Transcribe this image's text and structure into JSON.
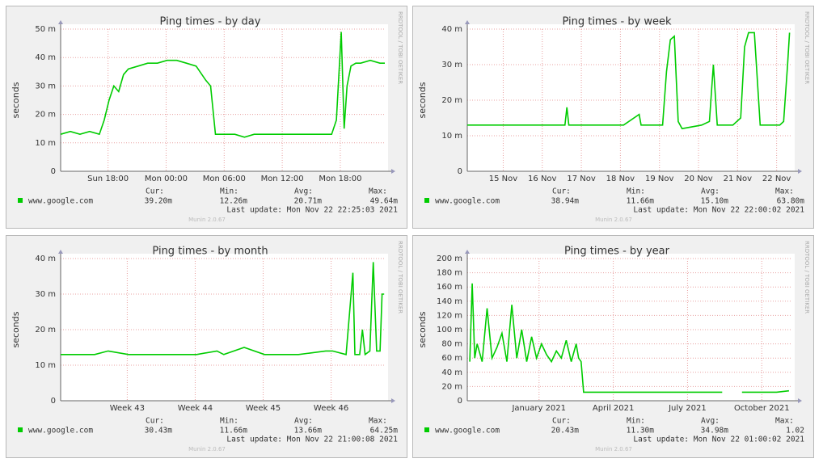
{
  "chart_data": [
    {
      "type": "line",
      "title": "Ping times - by day",
      "y_label": "seconds",
      "x": [
        0,
        1,
        2,
        3,
        4,
        4.5,
        5,
        5.5,
        6,
        6.5,
        7,
        8,
        9,
        10,
        11,
        12,
        13,
        14,
        15,
        15.5,
        16,
        16.3,
        17,
        18,
        19,
        20,
        21,
        22,
        23,
        24,
        25,
        26,
        27,
        28,
        28.5,
        29,
        29.3,
        29.6,
        30,
        30.5,
        31,
        32,
        33,
        33.5
      ],
      "series": [
        {
          "name": "www.google.com",
          "color": "#00cc00",
          "values": [
            13,
            14,
            13,
            14,
            13,
            18,
            25,
            30,
            28,
            34,
            36,
            37,
            38,
            38,
            39,
            39,
            38,
            37,
            32,
            30,
            13,
            13,
            13,
            13,
            12,
            13,
            13,
            13,
            13,
            13,
            13,
            13,
            13,
            13,
            18,
            49,
            15,
            30,
            37,
            38,
            38,
            39,
            38,
            38
          ]
        }
      ],
      "xlim": [
        0,
        33.5
      ],
      "xticks": [
        {
          "value": 4.9,
          "label": "Sun 18:00"
        },
        {
          "value": 10.9,
          "label": "Mon 00:00"
        },
        {
          "value": 16.9,
          "label": "Mon 06:00"
        },
        {
          "value": 22.9,
          "label": "Mon 12:00"
        },
        {
          "value": 28.9,
          "label": "Mon 18:00"
        }
      ],
      "ylim": [
        0,
        50
      ],
      "yticks": [
        0,
        {
          "value": 10,
          "label": "10 m"
        },
        {
          "value": 20,
          "label": "20 m"
        },
        {
          "value": 30,
          "label": "30 m"
        },
        {
          "value": 40,
          "label": "40 m"
        },
        {
          "value": 50,
          "label": "50 m"
        }
      ],
      "grid": true,
      "legend_headers": [
        "Cur:",
        "Min:",
        "Avg:",
        "Max:"
      ],
      "legend_values": [
        "39.20m",
        "12.26m",
        "20.71m",
        "49.64m"
      ],
      "last_update": "Last update: Mon Nov 22 22:25:03 2021",
      "watermark": "RRDTOOL / TOBI OETIKER",
      "footer": "Munin 2.0.67"
    },
    {
      "type": "line",
      "title": "Ping times - by week",
      "y_label": "seconds",
      "x": [
        0,
        0.5,
        1,
        1.5,
        2,
        2.5,
        2.55,
        2.6,
        3,
        3.5,
        4,
        4.4,
        4.45,
        4.6,
        5,
        5.1,
        5.2,
        5.3,
        5.4,
        5.5,
        6,
        6.2,
        6.3,
        6.4,
        6.8,
        7,
        7.1,
        7.2,
        7.35,
        7.5,
        7.6,
        8,
        8.1,
        8.2,
        8.25
      ],
      "series": [
        {
          "name": "www.google.com",
          "color": "#00cc00",
          "values": [
            13,
            13,
            13,
            13,
            13,
            13,
            18,
            13,
            13,
            13,
            13,
            16,
            13,
            13,
            13,
            28,
            37,
            38,
            14,
            12,
            13,
            14,
            30,
            13,
            13,
            15,
            35,
            39,
            39,
            13,
            13,
            13,
            14,
            30,
            39
          ]
        }
      ],
      "xlim": [
        0,
        8.3
      ],
      "xticks": [
        {
          "value": 0.92,
          "label": "15 Nov"
        },
        {
          "value": 1.92,
          "label": "16 Nov"
        },
        {
          "value": 2.92,
          "label": "17 Nov"
        },
        {
          "value": 3.92,
          "label": "18 Nov"
        },
        {
          "value": 4.92,
          "label": "19 Nov"
        },
        {
          "value": 5.92,
          "label": "20 Nov"
        },
        {
          "value": 6.92,
          "label": "21 Nov"
        },
        {
          "value": 7.92,
          "label": "22 Nov"
        }
      ],
      "ylim": [
        0,
        40
      ],
      "yticks": [
        0,
        {
          "value": 10,
          "label": "10 m"
        },
        {
          "value": 20,
          "label": "20 m"
        },
        {
          "value": 30,
          "label": "30 m"
        },
        {
          "value": 40,
          "label": "40 m"
        }
      ],
      "grid": true,
      "legend_headers": [
        "Cur:",
        "Min:",
        "Avg:",
        "Max:"
      ],
      "legend_values": [
        "38.94m",
        "11.66m",
        "15.10m",
        "63.80m"
      ],
      "last_update": "Last update: Mon Nov 22 22:00:02 2021",
      "watermark": "RRDTOOL / TOBI OETIKER",
      "footer": "Munin 2.0.67"
    },
    {
      "type": "line",
      "title": "Ping times - by month",
      "y_label": "seconds",
      "x": [
        0,
        0.5,
        0.7,
        1,
        1.5,
        2,
        2.3,
        2.4,
        2.7,
        3,
        3.5,
        3.9,
        4,
        4.2,
        4.3,
        4.33,
        4.4,
        4.44,
        4.48,
        4.55,
        4.6,
        4.65,
        4.7,
        4.73,
        4.76
      ],
      "series": [
        {
          "name": "www.google.com",
          "color": "#00cc00",
          "values": [
            13,
            13,
            14,
            13,
            13,
            13,
            14,
            13,
            15,
            13,
            13,
            14,
            14,
            13,
            36,
            13,
            13,
            20,
            13,
            14,
            39,
            14,
            14,
            30,
            30
          ]
        }
      ],
      "xlim": [
        0,
        4.77
      ],
      "xticks": [
        {
          "value": 0.98,
          "label": "Week 43"
        },
        {
          "value": 1.98,
          "label": "Week 44"
        },
        {
          "value": 2.98,
          "label": "Week 45"
        },
        {
          "value": 3.98,
          "label": "Week 46"
        }
      ],
      "ylim": [
        0,
        40
      ],
      "yticks": [
        0,
        {
          "value": 10,
          "label": "10 m"
        },
        {
          "value": 20,
          "label": "20 m"
        },
        {
          "value": 30,
          "label": "30 m"
        },
        {
          "value": 40,
          "label": "40 m"
        }
      ],
      "grid": true,
      "legend_headers": [
        "Cur:",
        "Min:",
        "Avg:",
        "Max:"
      ],
      "legend_values": [
        "30.43m",
        "11.66m",
        "13.66m",
        "64.25m"
      ],
      "last_update": "Last update: Mon Nov 22 21:00:08 2021",
      "watermark": "RRDTOOL / TOBI OETIKER",
      "footer": "Munin 2.0.67"
    },
    {
      "type": "line",
      "title": "Ping times - by year",
      "y_label": "seconds",
      "x": [
        0.1,
        0.2,
        0.3,
        0.4,
        0.6,
        0.8,
        1,
        1.2,
        1.4,
        1.6,
        1.8,
        2,
        2.2,
        2.4,
        2.6,
        2.8,
        3,
        3.2,
        3.4,
        3.6,
        3.8,
        4,
        4.2,
        4.4,
        4.5,
        4.6,
        4.7,
        4.8,
        5,
        6,
        7,
        8,
        9,
        10,
        10.3,
        10.4,
        11.1,
        11.5,
        12,
        12.5,
        13
      ],
      "series": [
        {
          "name": "www.google.com",
          "color": "#00cc00",
          "values": [
            55,
            165,
            60,
            80,
            55,
            130,
            60,
            75,
            95,
            55,
            135,
            60,
            100,
            55,
            90,
            60,
            80,
            65,
            55,
            70,
            60,
            85,
            55,
            80,
            60,
            55,
            12,
            12,
            12,
            12,
            12,
            12,
            12,
            12,
            12,
            null,
            12,
            12,
            12,
            12,
            14
          ]
        }
      ],
      "xlim": [
        0,
        13.1
      ],
      "xticks": [
        {
          "value": 2.9,
          "label": "January 2021"
        },
        {
          "value": 5.9,
          "label": "April 2021"
        },
        {
          "value": 8.9,
          "label": "July 2021"
        },
        {
          "value": 11.9,
          "label": "October 2021"
        }
      ],
      "ylim": [
        0,
        200
      ],
      "yticks": [
        0,
        {
          "value": 20,
          "label": "20 m"
        },
        {
          "value": 40,
          "label": "40 m"
        },
        {
          "value": 60,
          "label": "60 m"
        },
        {
          "value": 80,
          "label": "80 m"
        },
        {
          "value": 100,
          "label": "100 m"
        },
        {
          "value": 120,
          "label": "120 m"
        },
        {
          "value": 140,
          "label": "140 m"
        },
        {
          "value": 160,
          "label": "160 m"
        },
        {
          "value": 180,
          "label": "180 m"
        },
        {
          "value": 200,
          "label": "200 m"
        }
      ],
      "grid": true,
      "legend_headers": [
        "Cur:",
        "Min:",
        "Avg:",
        "Max:"
      ],
      "legend_values": [
        "20.43m",
        "11.30m",
        "34.98m",
        "1.02"
      ],
      "last_update": "Last update: Mon Nov 22 01:00:02 2021",
      "watermark": "RRDTOOL / TOBI OETIKER",
      "footer": "Munin 2.0.67"
    }
  ]
}
